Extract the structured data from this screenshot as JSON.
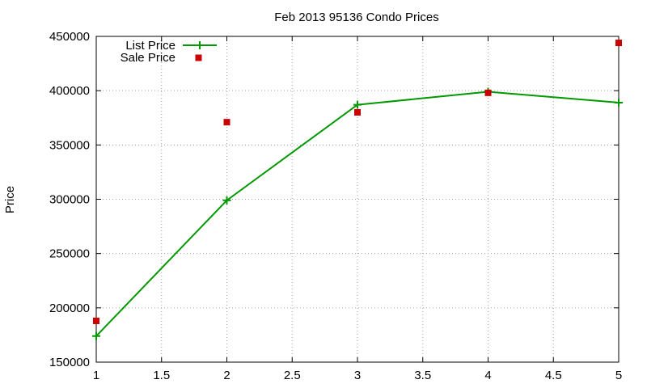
{
  "chart_data": {
    "type": "line",
    "title": "Feb 2013 95136 Condo Prices",
    "xlabel": "",
    "ylabel": "Price",
    "xlim": [
      1,
      5
    ],
    "ylim": [
      150000,
      450000
    ],
    "xticks": [
      "1",
      "1.5",
      "2",
      "2.5",
      "3",
      "3.5",
      "4",
      "4.5",
      "5"
    ],
    "yticks": [
      "150000",
      "200000",
      "250000",
      "300000",
      "350000",
      "400000",
      "450000"
    ],
    "grid": true,
    "legend_position": "top-left",
    "series": [
      {
        "name": "List Price",
        "style": "line+cross",
        "color": "#009900",
        "x": [
          1,
          2,
          3,
          4,
          5
        ],
        "y": [
          174000,
          299000,
          387000,
          399000,
          389000
        ]
      },
      {
        "name": "Sale Price",
        "style": "square",
        "color": "#cc0000",
        "x": [
          1,
          2,
          3,
          4,
          5
        ],
        "y": [
          188000,
          371000,
          380000,
          398000,
          444000
        ]
      }
    ]
  }
}
